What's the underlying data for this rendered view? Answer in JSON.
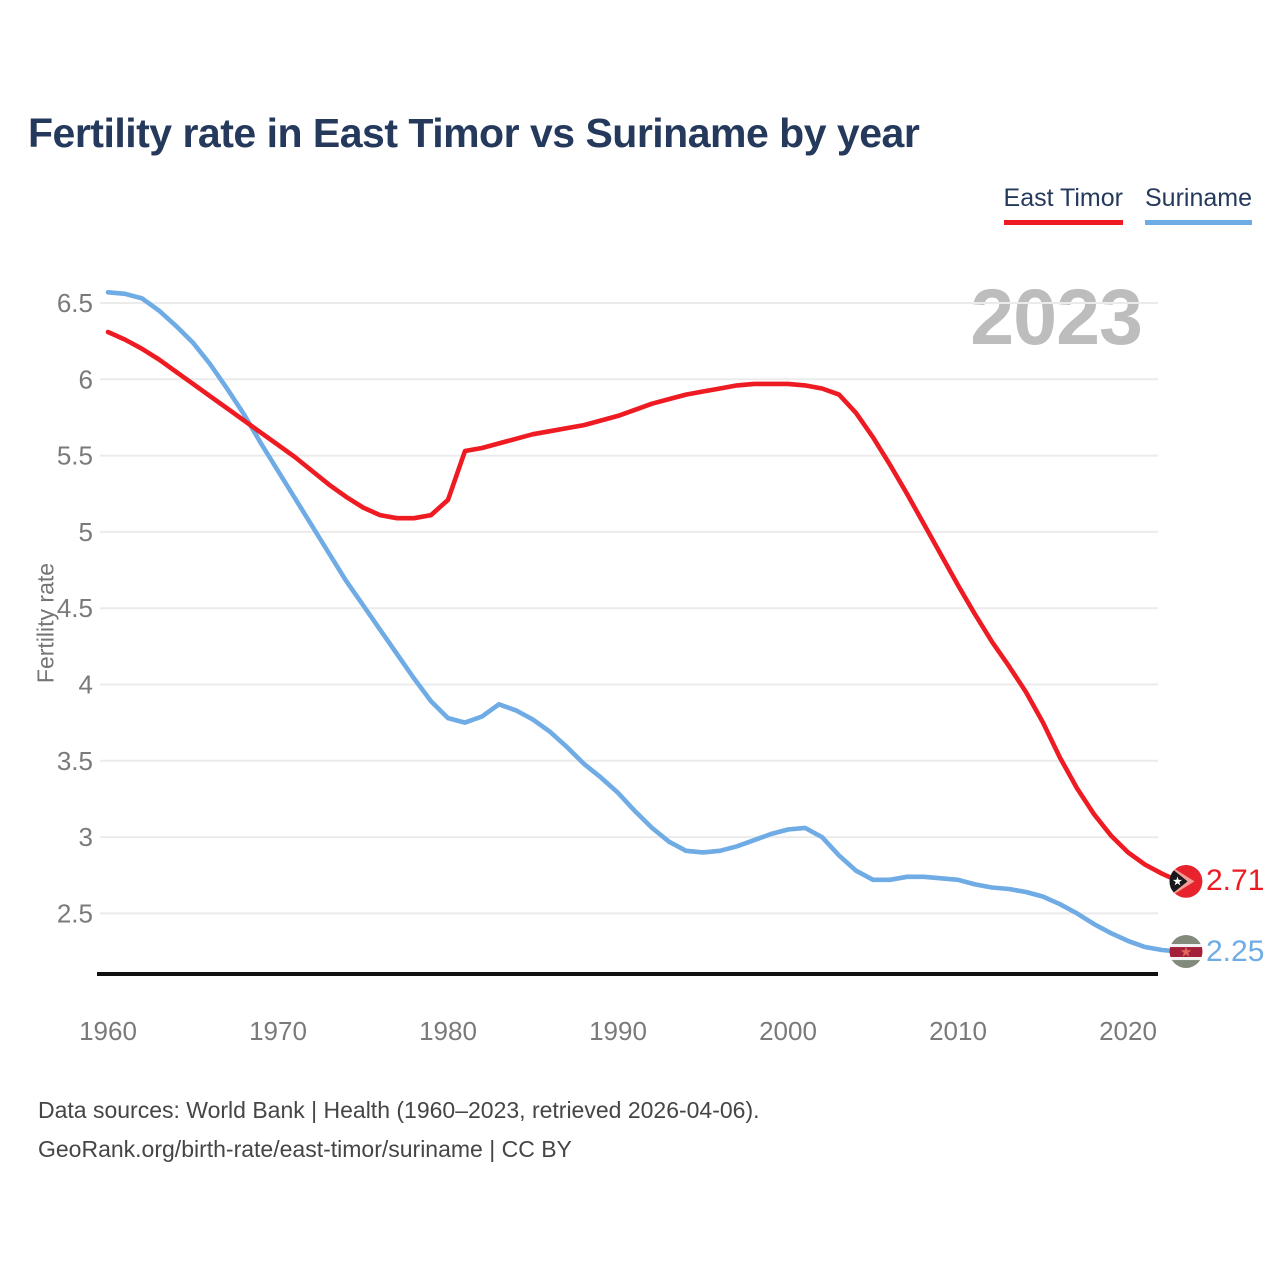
{
  "header": {
    "title": "Fertility rate in East Timor vs Suriname by year"
  },
  "legend": {
    "items": [
      {
        "label": "East Timor",
        "color": "#ee1b23"
      },
      {
        "label": "Suriname",
        "color": "#6fabe4"
      }
    ]
  },
  "chart": {
    "watermark": "2023",
    "y_axis_label": "Fertility rate",
    "end_labels": [
      {
        "series": "East Timor",
        "value": "2.71",
        "color": "#ee1b23"
      },
      {
        "series": "Suriname",
        "value": "2.25",
        "color": "#6fabe4"
      }
    ]
  },
  "chart_data": {
    "type": "line",
    "title": "Fertility rate in East Timor vs Suriname by year",
    "ylabel": "Fertility rate",
    "xlabel": "",
    "x_ticks": [
      1960,
      1970,
      1980,
      1990,
      2000,
      2010,
      2020
    ],
    "y_ticks": [
      2.5,
      3,
      3.5,
      4,
      4.5,
      5,
      5.5,
      6,
      6.5
    ],
    "xlim": [
      1960,
      2023
    ],
    "ylim": [
      2.1,
      6.65
    ],
    "grid": true,
    "legend_position": "top-right",
    "years": [
      1960,
      1961,
      1962,
      1963,
      1964,
      1965,
      1966,
      1967,
      1968,
      1969,
      1970,
      1971,
      1972,
      1973,
      1974,
      1975,
      1976,
      1977,
      1978,
      1979,
      1980,
      1981,
      1982,
      1983,
      1984,
      1985,
      1986,
      1987,
      1988,
      1989,
      1990,
      1991,
      1992,
      1993,
      1994,
      1995,
      1996,
      1997,
      1998,
      1999,
      2000,
      2001,
      2002,
      2003,
      2004,
      2005,
      2006,
      2007,
      2008,
      2009,
      2010,
      2011,
      2012,
      2013,
      2014,
      2015,
      2016,
      2017,
      2018,
      2019,
      2020,
      2021,
      2022,
      2023
    ],
    "series": [
      {
        "name": "East Timor",
        "color": "#ee1b23",
        "end_value": 2.71,
        "values": [
          6.31,
          6.26,
          6.2,
          6.13,
          6.05,
          5.97,
          5.89,
          5.81,
          5.73,
          5.65,
          5.57,
          5.49,
          5.4,
          5.31,
          5.23,
          5.16,
          5.11,
          5.09,
          5.09,
          5.11,
          5.21,
          5.53,
          5.55,
          5.58,
          5.61,
          5.64,
          5.66,
          5.68,
          5.7,
          5.73,
          5.76,
          5.8,
          5.84,
          5.87,
          5.9,
          5.92,
          5.94,
          5.96,
          5.97,
          5.97,
          5.97,
          5.96,
          5.94,
          5.9,
          5.78,
          5.62,
          5.44,
          5.25,
          5.05,
          4.85,
          4.65,
          4.46,
          4.28,
          4.12,
          3.95,
          3.75,
          3.52,
          3.32,
          3.15,
          3.01,
          2.9,
          2.82,
          2.76,
          2.71
        ]
      },
      {
        "name": "Suriname",
        "color": "#6fabe4",
        "end_value": 2.25,
        "values": [
          6.57,
          6.56,
          6.53,
          6.45,
          6.35,
          6.24,
          6.1,
          5.94,
          5.77,
          5.58,
          5.4,
          5.22,
          5.04,
          4.86,
          4.68,
          4.52,
          4.36,
          4.2,
          4.04,
          3.89,
          3.78,
          3.75,
          3.79,
          3.87,
          3.83,
          3.77,
          3.69,
          3.59,
          3.48,
          3.39,
          3.29,
          3.17,
          3.06,
          2.97,
          2.91,
          2.9,
          2.91,
          2.94,
          2.98,
          3.02,
          3.05,
          3.06,
          3.0,
          2.88,
          2.78,
          2.72,
          2.72,
          2.74,
          2.74,
          2.73,
          2.72,
          2.69,
          2.67,
          2.66,
          2.64,
          2.61,
          2.56,
          2.5,
          2.43,
          2.37,
          2.32,
          2.28,
          2.26,
          2.25
        ]
      }
    ]
  },
  "footer": {
    "line1": "Data sources: World Bank | Health (1960–2023, retrieved 2026-04-06).",
    "line2": "GeoRank.org/birth-rate/east-timor/suriname | CC BY"
  },
  "colors": {
    "title_text": "#24395b",
    "axis_text": "#7a7a7a",
    "gridline": "#ebebeb",
    "axis_line": "#111111",
    "watermark": "#bdbdbd",
    "east_timor": "#ee1b23",
    "suriname": "#6fabe4",
    "footer_text": "#454545"
  }
}
